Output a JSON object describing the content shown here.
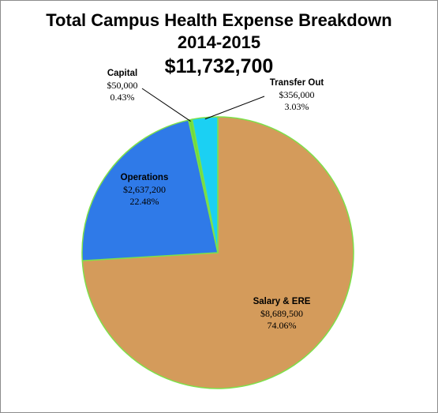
{
  "chart_data": {
    "type": "pie",
    "title_line1": "Total Campus Health Expense Breakdown",
    "title_line2": "2014-2015",
    "title_line3": "$11,732,700",
    "slices": [
      {
        "name": "Salary & ERE",
        "value": 8689500,
        "value_label": "$8,689,500",
        "pct_label": "74.06%",
        "color": "#d49b5b"
      },
      {
        "name": "Operations",
        "value": 2637200,
        "value_label": "$2,637,200",
        "pct_label": "22.48%",
        "color": "#2f7ae8"
      },
      {
        "name": "Capital",
        "value": 50000,
        "value_label": "$50,000",
        "pct_label": "0.43%",
        "color": "#6fdc3c"
      },
      {
        "name": "Transfer Out",
        "value": 356000,
        "value_label": "$356,000",
        "pct_label": "3.03%",
        "color": "#1bd0f3"
      }
    ],
    "slice_border_color": "#7ee04a",
    "legend": "none"
  }
}
